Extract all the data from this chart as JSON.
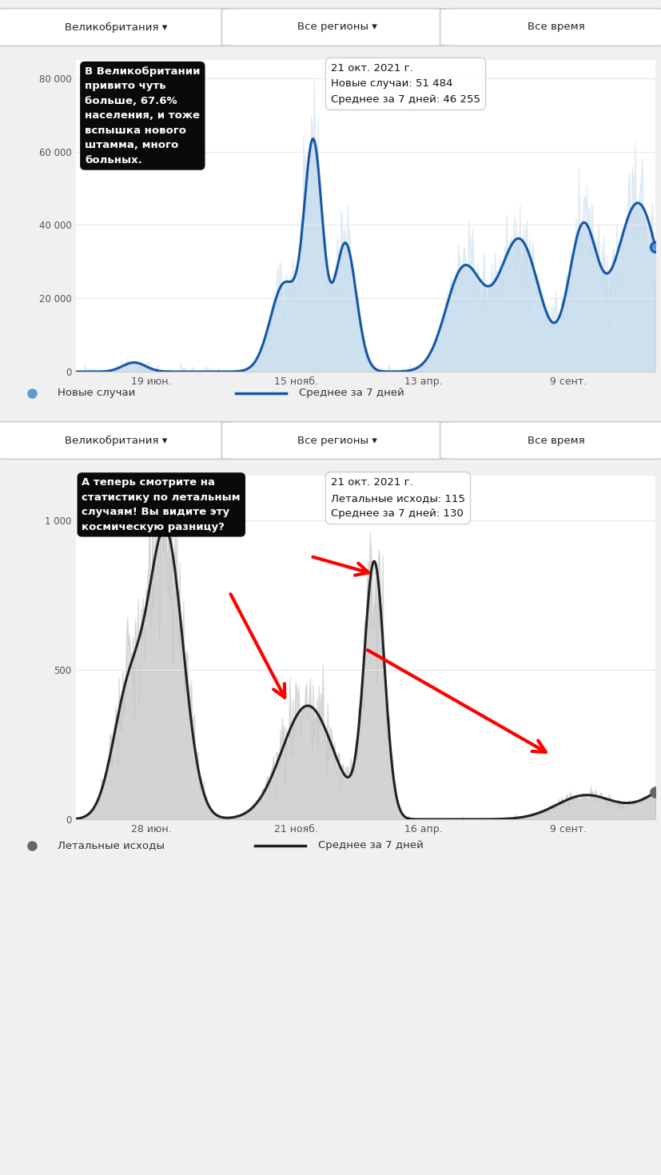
{
  "bg_color": "#f0f0f0",
  "chart_bg": "#ffffff",
  "dropdown_labels": [
    "Великобритания ▾",
    "Все регионы ▾",
    "Все время"
  ],
  "chart1": {
    "ytick_labels": [
      "0",
      "20 000",
      "40 000",
      "60 000",
      "80 000"
    ],
    "yticks": [
      0,
      20000,
      40000,
      60000,
      80000
    ],
    "xtick_labels": [
      "19 июн.",
      "15 нояб.",
      "13 апр.",
      "9 сент."
    ],
    "fill_color": "#bad4ea",
    "line_color": "#1558a7",
    "dot_color": "#5b9bd5",
    "legend_text1": "Новые случаи",
    "legend_text2": "Среднее за 7 дней",
    "annotation_text": "В Великобритании\nпривито чуть\nбольше, 67.6%\nнаселения, и тоже\nвспышка нового\nштамма, много\nбольных.",
    "tooltip_date": "21 окт. 2021 г.",
    "tooltip_line1": "Новые случаи: 51 484",
    "tooltip_line2": "Среднее за 7 дней: 46 255",
    "ylim": [
      0,
      85000
    ]
  },
  "chart2": {
    "ytick_labels": [
      "0",
      "500",
      "1 000"
    ],
    "yticks": [
      0,
      500,
      1000
    ],
    "xtick_labels": [
      "28 июн.",
      "21 нояб.",
      "16 апр.",
      "9 сент."
    ],
    "fill_color": "#b8b8b8",
    "line_color": "#222222",
    "dot_color": "#666666",
    "legend_text1": "Летальные исходы",
    "legend_text2": "Среднее за 7 дней",
    "annotation_text": "А теперь смотрите на\nстатистику по летальным\nслучаям! Вы видите эту\nкосмическую разницу?",
    "tooltip_date": "21 окт. 2021 г.",
    "tooltip_line1": "Летальные исходы: 115",
    "tooltip_line2": "Среднее за 7 дней: 130",
    "ylim": [
      0,
      1150
    ]
  }
}
